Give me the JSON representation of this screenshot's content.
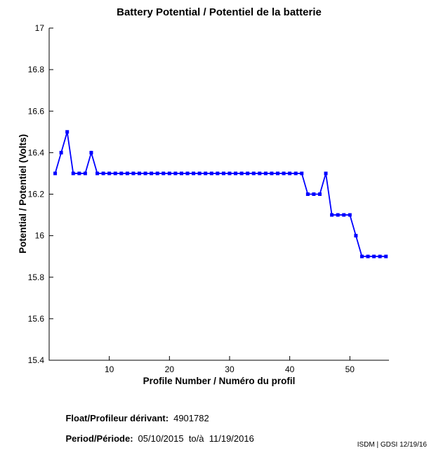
{
  "chart_data": {
    "type": "line",
    "title": "Battery Potential / Potentiel de la batterie",
    "xlabel": "Profile Number / Numéro du profil",
    "ylabel": "Potential / Potentiel (Volts)",
    "xlim": [
      0,
      56.5
    ],
    "ylim": [
      15.4,
      17
    ],
    "xticks": [
      10,
      20,
      30,
      40,
      50
    ],
    "yticks": [
      15.4,
      15.6,
      15.8,
      16,
      16.2,
      16.4,
      16.6,
      16.8,
      17
    ],
    "grid": false,
    "legend": null,
    "line_color": "#0000FF",
    "marker": "square",
    "marker_size": 5,
    "x": [
      1,
      2,
      3,
      4,
      5,
      6,
      7,
      8,
      9,
      10,
      11,
      12,
      13,
      14,
      15,
      16,
      17,
      18,
      19,
      20,
      21,
      22,
      23,
      24,
      25,
      26,
      27,
      28,
      29,
      30,
      31,
      32,
      33,
      34,
      35,
      36,
      37,
      38,
      39,
      40,
      41,
      42,
      43,
      44,
      45,
      46,
      47,
      48,
      49,
      50,
      51,
      52,
      53,
      54,
      55,
      56
    ],
    "y": [
      16.3,
      16.4,
      16.5,
      16.3,
      16.3,
      16.3,
      16.4,
      16.3,
      16.3,
      16.3,
      16.3,
      16.3,
      16.3,
      16.3,
      16.3,
      16.3,
      16.3,
      16.3,
      16.3,
      16.3,
      16.3,
      16.3,
      16.3,
      16.3,
      16.3,
      16.3,
      16.3,
      16.3,
      16.3,
      16.3,
      16.3,
      16.3,
      16.3,
      16.3,
      16.3,
      16.3,
      16.3,
      16.3,
      16.3,
      16.3,
      16.3,
      16.3,
      16.2,
      16.2,
      16.2,
      16.3,
      16.1,
      16.1,
      16.1,
      16.1,
      16.0,
      15.9,
      15.9,
      15.9,
      15.9,
      15.9
    ]
  },
  "footer": {
    "float_label": "Float/Profileur dérivant:",
    "float_value": "4901782",
    "period_label": "Period/Période:",
    "period_value": "05/10/2015  to/à  11/19/2016",
    "credit": "ISDM | GDSI 12/19/16"
  }
}
